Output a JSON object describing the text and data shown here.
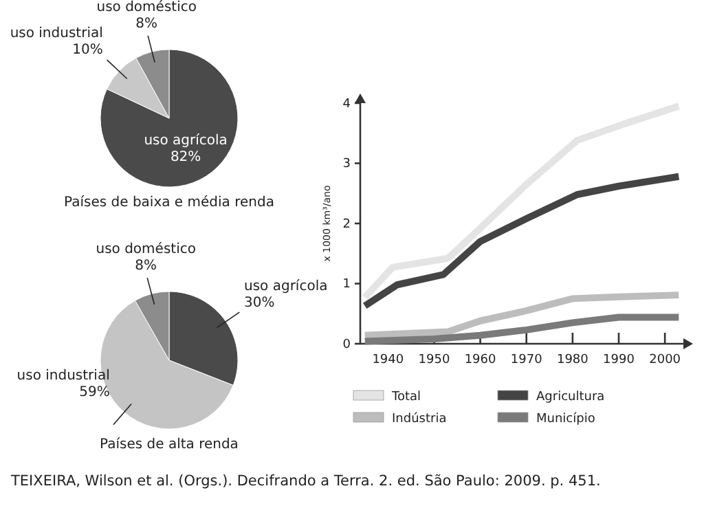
{
  "chart_data": [
    {
      "type": "pie",
      "title": "Países de baixa e média renda",
      "categories": [
        "uso agrícola",
        "uso industrial",
        "uso doméstico"
      ],
      "values": [
        82,
        10,
        8
      ],
      "value_labels": [
        "82%",
        "10%",
        "8%"
      ],
      "colors": [
        "#4a4a4a",
        "#c8c8c8",
        "#8c8c8c"
      ]
    },
    {
      "type": "pie",
      "title": "Países de alta renda",
      "categories": [
        "uso agrícola",
        "uso industrial",
        "uso doméstico"
      ],
      "values": [
        30,
        59,
        8
      ],
      "value_labels": [
        "30%",
        "59%",
        "8%"
      ],
      "colors": [
        "#4a4a4a",
        "#c4c4c4",
        "#8c8c8c"
      ]
    },
    {
      "type": "line",
      "ylabel": "x 1000 km³/ano",
      "xlim": [
        1934,
        2004
      ],
      "xticks": [
        1940,
        1950,
        1960,
        1970,
        1980,
        1990,
        2000
      ],
      "ylim": [
        0,
        4
      ],
      "yticks": [
        0,
        1,
        2,
        3,
        4
      ],
      "legend": "bottom",
      "grid": false,
      "series": [
        {
          "name": "Total",
          "color": "#e4e4e4",
          "x": [
            1935,
            1941,
            1953,
            1960,
            1970,
            1981,
            1991,
            2003
          ],
          "values": [
            0.77,
            1.27,
            1.42,
            1.92,
            2.65,
            3.38,
            3.65,
            3.95
          ]
        },
        {
          "name": "Agricultura",
          "color": "#444444",
          "x": [
            1935,
            1942,
            1952,
            1960,
            1970,
            1981,
            1990,
            2003
          ],
          "values": [
            0.63,
            0.98,
            1.15,
            1.7,
            2.08,
            2.48,
            2.62,
            2.78
          ]
        },
        {
          "name": "Indústria",
          "color": "#bdbdbd",
          "x": [
            1935,
            1953,
            1960,
            1970,
            1980,
            1990,
            2003
          ],
          "values": [
            0.14,
            0.2,
            0.38,
            0.55,
            0.75,
            0.78,
            0.81
          ]
        },
        {
          "name": "Município",
          "color": "#7a7a7a",
          "x": [
            1935,
            1950,
            1960,
            1970,
            1980,
            1990,
            2003
          ],
          "values": [
            0.04,
            0.08,
            0.14,
            0.23,
            0.35,
            0.44,
            0.44
          ]
        }
      ],
      "annotations": [
        "TEIXEIRA, Wilson et al. (Orgs.). Decifrando a Terra. 2. ed. São Paulo: 2009. p. 451."
      ]
    }
  ]
}
